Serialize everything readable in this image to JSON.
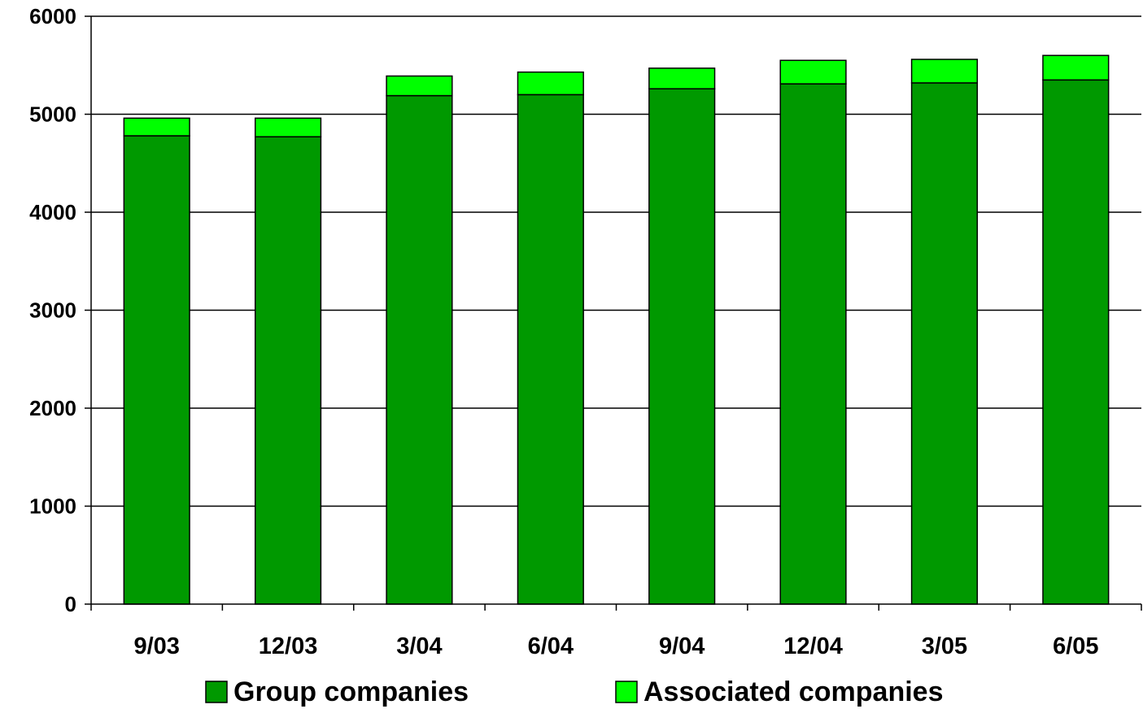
{
  "chart_data": {
    "type": "bar",
    "stacked": true,
    "title": "",
    "xlabel": "",
    "ylabel": "",
    "categories": [
      "9/03",
      "12/03",
      "3/04",
      "6/04",
      "9/04",
      "12/04",
      "3/05",
      "6/05"
    ],
    "series": [
      {
        "name": "Group companies",
        "color": "#009900",
        "values": [
          4780,
          4770,
          5190,
          5200,
          5260,
          5310,
          5320,
          5350
        ]
      },
      {
        "name": "Associated companies",
        "color": "#00ff00",
        "values": [
          180,
          190,
          200,
          230,
          210,
          240,
          240,
          250
        ]
      }
    ],
    "ylim": [
      0,
      6000
    ],
    "yticks": [
      0,
      1000,
      2000,
      3000,
      4000,
      5000,
      6000
    ],
    "grid": true,
    "legend_position": "bottom"
  }
}
